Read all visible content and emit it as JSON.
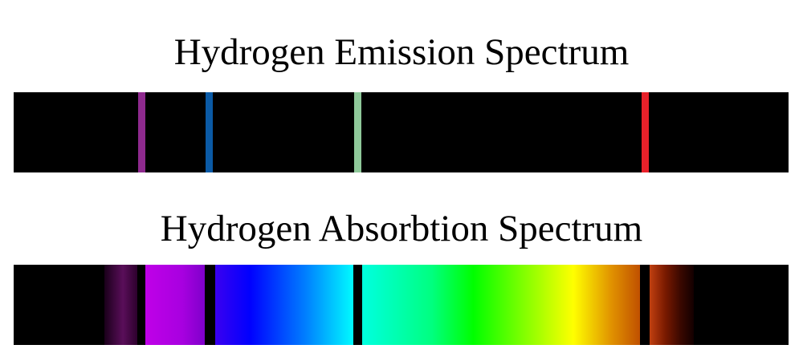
{
  "emission": {
    "title": "Hydrogen Emission Spectrum",
    "lines": [
      {
        "name": "violet-line",
        "color": "#8e2a8e",
        "position": 0.165
      },
      {
        "name": "blue-line",
        "color": "#0a5aa6",
        "position": 0.252
      },
      {
        "name": "green-line",
        "color": "#8fc99a",
        "position": 0.444
      },
      {
        "name": "red-line",
        "color": "#e8212a",
        "position": 0.815
      }
    ]
  },
  "absorption": {
    "title": "Hydrogen Absorbtion Spectrum",
    "spectrum_colors": [
      "#3a0a3a",
      "#b000e0",
      "#0000ff",
      "#00ffff",
      "#00ff00",
      "#ffff00",
      "#ff6a00",
      "#2a0000"
    ],
    "dark_lines": [
      {
        "name": "absorption-line-violet",
        "position": 0.165
      },
      {
        "name": "absorption-line-blue",
        "position": 0.252
      },
      {
        "name": "absorption-line-green",
        "position": 0.444
      },
      {
        "name": "absorption-line-red",
        "position": 0.815
      }
    ]
  }
}
